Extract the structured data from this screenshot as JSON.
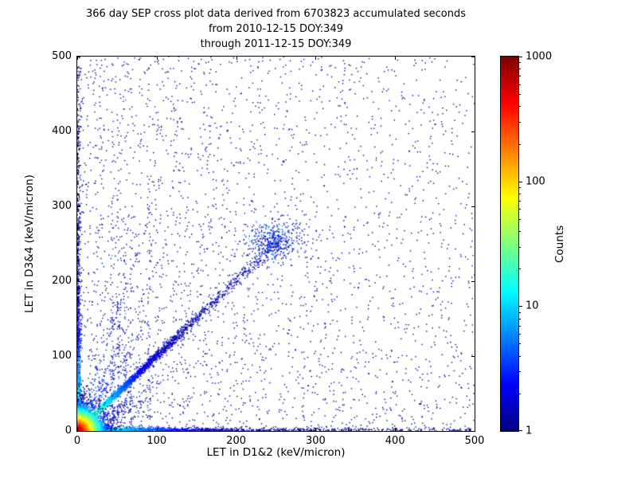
{
  "chart_data": {
    "type": "scatter",
    "title_lines": [
      "366 day SEP cross plot data derived from 6703823 accumulated seconds",
      "from 2010-12-15 DOY:349",
      "through 2011-12-15 DOY:349"
    ],
    "xlabel": "LET in D1&2 (keV/micron)",
    "ylabel": "LET in D3&4 (keV/micron)",
    "xlim": [
      0,
      500
    ],
    "ylim": [
      0,
      500
    ],
    "xticks": [
      0,
      100,
      200,
      300,
      400,
      500
    ],
    "yticks": [
      0,
      100,
      200,
      300,
      400,
      500
    ],
    "grid": false,
    "legend": false,
    "colorbar": {
      "label": "Counts",
      "scale": "log",
      "range": [
        1,
        1000
      ],
      "ticks": [
        1,
        10,
        100,
        1000
      ],
      "colormap": "jet"
    },
    "density_model": {
      "seed": 7,
      "clusters": [
        {
          "name": "background-scatter",
          "type": "background",
          "n": 3000,
          "uniform_frac": 0.5,
          "left_frac": 0.3,
          "edge_scale": 180
        },
        {
          "name": "origin-fan-rays",
          "type": "fan",
          "n": 550,
          "slopes": [
            1.6,
            2.2,
            3.2,
            0.45,
            0.62
          ],
          "t_scale": 45,
          "jitter": 1.5,
          "count_near": 6
        },
        {
          "name": "vertical-streaks",
          "type": "streaks",
          "n": 320,
          "xs": [
            44,
            52,
            60,
            68,
            90
          ],
          "y_scale": 150,
          "jitter": 1.3
        },
        {
          "name": "diagonal-clump",
          "type": "blob",
          "n": 420,
          "cx": 247,
          "cy": 253,
          "sx": 16,
          "sy": 12,
          "count_scale": 2
        },
        {
          "name": "diagonal-band",
          "type": "diagonal",
          "n": 3200,
          "t_scale": 70,
          "t_max": 272,
          "width0": 1.2,
          "width_slope": 0.012,
          "count_near": 80,
          "count_scale": 18,
          "count_floor": 1.4
        },
        {
          "name": "x-axis-band",
          "type": "axis-x",
          "n": 1500,
          "x_scale": 110,
          "uniform_frac": 0.2,
          "width": 2.2,
          "count_near": 35,
          "count_scale": 40
        },
        {
          "name": "y-axis-band",
          "type": "axis-y",
          "n": 1300,
          "x_scale": 110,
          "uniform_frac": 0.2,
          "width": 2.2,
          "count_near": 35,
          "count_scale": 40
        },
        {
          "name": "origin-hotspot",
          "type": "core",
          "n": 5200,
          "scale": 9,
          "count_peak": 1100,
          "count_falloff": 6.5
        }
      ]
    }
  }
}
